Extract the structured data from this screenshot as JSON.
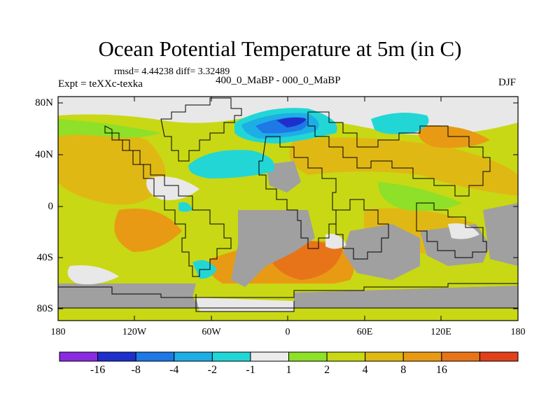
{
  "title": "Ocean Potential Temperature at 5m (in C)",
  "stats_text": "rmsd= 4.44238 diff= 3.32489",
  "experiment": "Expt = teXXc-texka",
  "subtitle": "400_0_MaBP - 000_0_MaBP",
  "season": "DJF",
  "y_axis": {
    "ticks": [
      "80N",
      "40N",
      "0",
      "40S",
      "80S"
    ]
  },
  "x_axis": {
    "ticks": [
      "180",
      "120W",
      "60W",
      "0",
      "60E",
      "120E",
      "180"
    ]
  },
  "colorbar": {
    "colors": [
      "#8a2be2",
      "#1e2fcc",
      "#1e78e6",
      "#1eaee6",
      "#22d6d6",
      "#ececec",
      "#8ee028",
      "#c8d814",
      "#e0b814",
      "#e89a14",
      "#e8741a",
      "#e0401a"
    ],
    "labels": [
      "-16",
      "-8",
      "-4",
      "-2",
      "-1",
      "1",
      "2",
      "4",
      "8",
      "16"
    ]
  },
  "palette": {
    "land": "#a0a0a0",
    "ice": "#e8e8e8",
    "ocean_mid": "#c8d814",
    "ocean_warm": "#e0b814"
  }
}
